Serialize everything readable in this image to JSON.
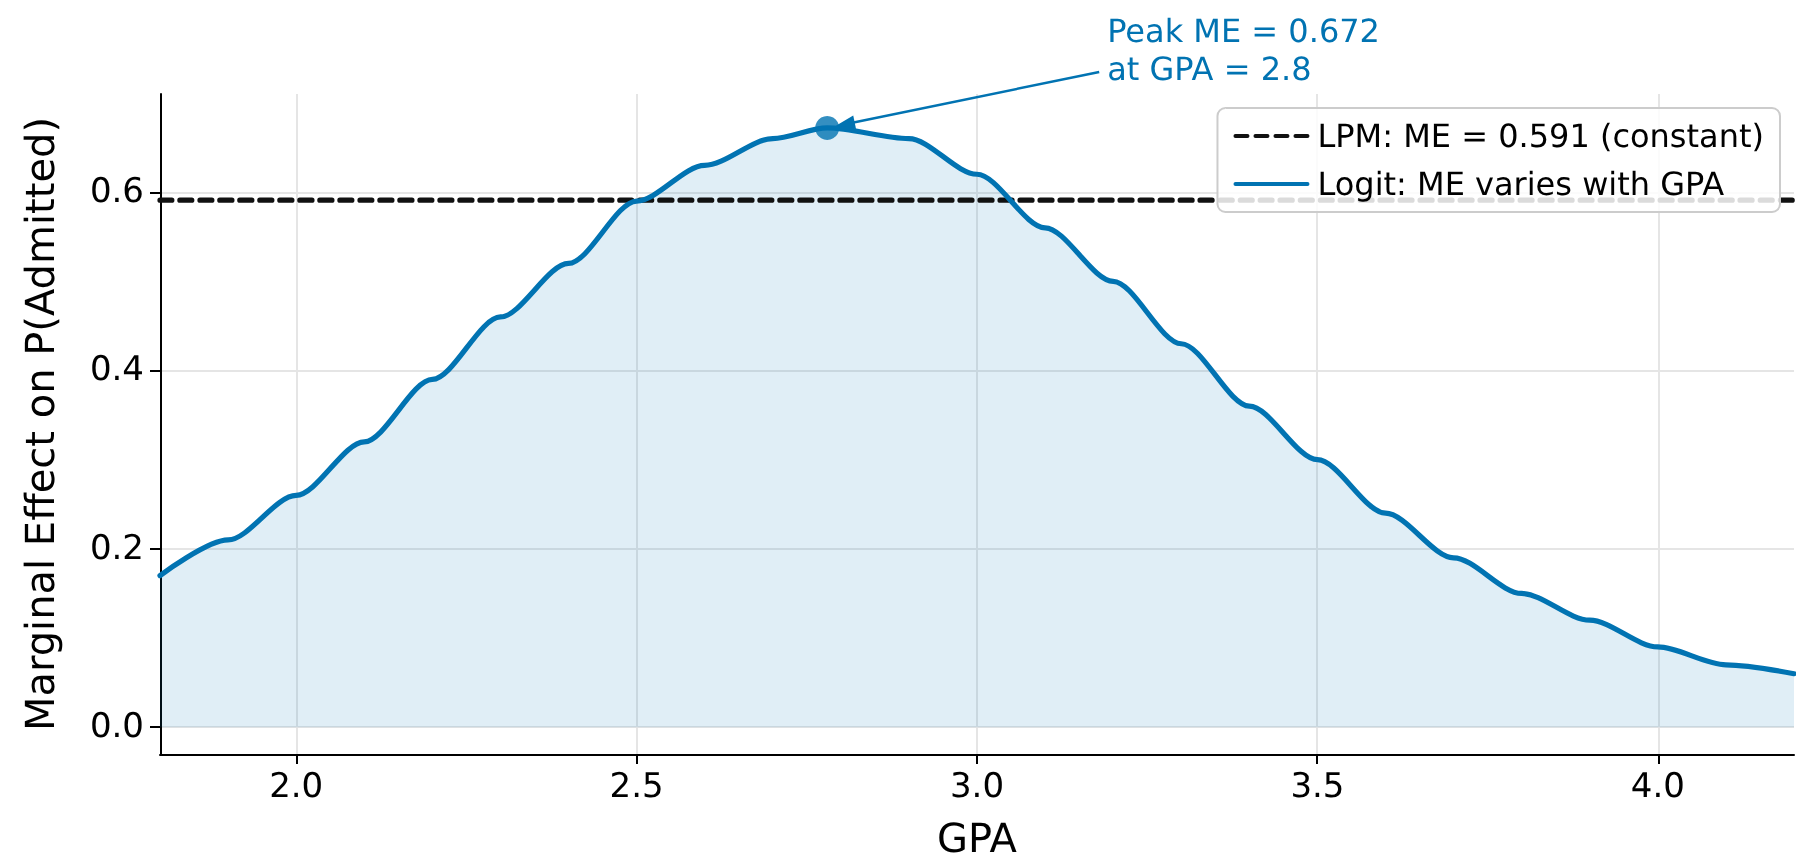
{
  "chart_data": {
    "type": "line",
    "xlabel": "GPA",
    "ylabel": "Marginal Effect on P(Admitted)",
    "xlim": [
      1.8,
      4.2
    ],
    "xticks": [
      {
        "value": 2,
        "label": "2.0"
      },
      2.5,
      {
        "value": 3,
        "label": "3.0"
      },
      3.5,
      {
        "value": 4,
        "label": "4.0"
      }
    ],
    "ylim": [
      -0.03,
      0.71
    ],
    "yticks": [
      {
        "value": 0,
        "label": "0.0"
      },
      0.2,
      0.4,
      0.6
    ],
    "grid": true,
    "legend": "top right",
    "marker": "none",
    "series": [
      {
        "name": "LPM: ME = 0.591 (constant)",
        "line_style": "dashed",
        "color": "#111111",
        "x": [
          1.8,
          4.2
        ],
        "values": [
          0.591,
          0.591
        ]
      },
      {
        "name": "Logit: ME varies with GPA",
        "type": "area",
        "line_style": "solid",
        "color": "#0173b2",
        "x": [
          1.8,
          1.9,
          2.0,
          2.1,
          2.2,
          2.3,
          2.4,
          2.5,
          2.6,
          2.7,
          2.78,
          2.9,
          3.0,
          3.1,
          3.2,
          3.3,
          3.4,
          3.5,
          3.6,
          3.7,
          3.8,
          3.9,
          4.0,
          4.1,
          4.2
        ],
        "values": [
          0.17,
          0.21,
          0.26,
          0.32,
          0.39,
          0.46,
          0.52,
          0.59,
          0.63,
          0.66,
          0.672,
          0.66,
          0.62,
          0.56,
          0.5,
          0.43,
          0.36,
          0.3,
          0.24,
          0.19,
          0.15,
          0.12,
          0.09,
          0.07,
          0.06
        ]
      },
      {
        "type": "scatter",
        "marker": "circle",
        "color": "#0173b2",
        "x": [
          2.78
        ],
        "values": [
          0.672
        ]
      }
    ],
    "annotations": [
      {
        "text": "Peak ME = 0.672\nat GPA = 2.8",
        "x": 2.78,
        "y": 0.672
      }
    ]
  }
}
